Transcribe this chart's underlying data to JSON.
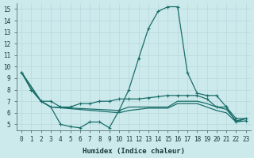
{
  "xlabel": "Humidex (Indice chaleur)",
  "background_color": "#cce9ec",
  "grid_color": "#b8d8dc",
  "line_color": "#1a6e6a",
  "xlim": [
    -0.5,
    23.5
  ],
  "ylim": [
    4.5,
    15.5
  ],
  "yticks": [
    5,
    6,
    7,
    8,
    9,
    10,
    11,
    12,
    13,
    14,
    15
  ],
  "xticks": [
    0,
    1,
    2,
    3,
    4,
    5,
    6,
    7,
    8,
    9,
    10,
    11,
    12,
    13,
    14,
    15,
    16,
    17,
    18,
    19,
    20,
    21,
    22,
    23
  ],
  "lines": [
    {
      "x": [
        0,
        1,
        2,
        3,
        4,
        5,
        6,
        7,
        8,
        9,
        10,
        11,
        12,
        13,
        14,
        15,
        16,
        17,
        18,
        19,
        20,
        21,
        22,
        23
      ],
      "y": [
        9.5,
        8.0,
        7.0,
        6.5,
        5.0,
        4.8,
        4.7,
        5.2,
        5.2,
        4.7,
        6.2,
        8.0,
        10.7,
        13.3,
        14.8,
        15.2,
        15.2,
        9.5,
        7.7,
        7.5,
        7.5,
        6.5,
        5.2,
        5.3
      ],
      "marker": true
    },
    {
      "x": [
        0,
        1,
        2,
        3,
        4,
        5,
        6,
        7,
        8,
        9,
        10,
        11,
        12,
        13,
        14,
        15,
        16,
        17,
        18,
        19,
        20,
        21,
        22,
        23
      ],
      "y": [
        9.5,
        8.0,
        7.0,
        7.0,
        6.5,
        6.5,
        6.8,
        6.8,
        7.0,
        7.0,
        7.2,
        7.2,
        7.2,
        7.3,
        7.4,
        7.5,
        7.5,
        7.5,
        7.5,
        7.2,
        6.5,
        6.5,
        5.5,
        5.5
      ],
      "marker": true
    },
    {
      "x": [
        0,
        2,
        3,
        10,
        11,
        12,
        13,
        14,
        15,
        16,
        17,
        18,
        19,
        20,
        21,
        22,
        23
      ],
      "y": [
        9.5,
        7.0,
        6.5,
        6.2,
        6.5,
        6.5,
        6.5,
        6.5,
        6.5,
        7.0,
        7.0,
        7.0,
        6.8,
        6.5,
        6.3,
        5.3,
        5.5
      ],
      "marker": false
    },
    {
      "x": [
        0,
        2,
        3,
        10,
        11,
        12,
        13,
        14,
        15,
        16,
        17,
        18,
        19,
        20,
        21,
        22,
        23
      ],
      "y": [
        9.5,
        7.0,
        6.5,
        6.0,
        6.2,
        6.3,
        6.4,
        6.4,
        6.4,
        6.8,
        6.8,
        6.8,
        6.5,
        6.2,
        6.0,
        5.2,
        5.5
      ],
      "marker": false
    }
  ]
}
